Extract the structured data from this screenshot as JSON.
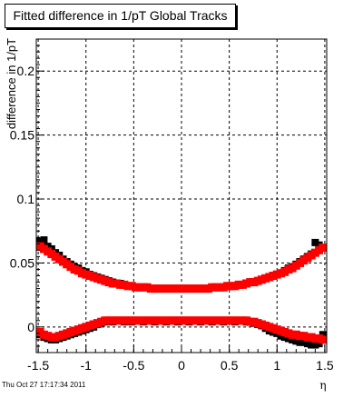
{
  "chart_data": {
    "type": "scatter",
    "title": "Fitted difference in 1/pT  Global Tracks",
    "xlabel": "η",
    "ylabel": "difference in 1/pT",
    "xlim": [
      -1.52,
      1.52
    ],
    "ylim": [
      -0.02,
      0.225
    ],
    "xticks": [
      -1.5,
      -1,
      -0.5,
      0,
      0.5,
      1,
      1.5
    ],
    "xtick_labels": [
      "-1.5",
      "-1",
      "-0.5",
      "0",
      "0.5",
      "1",
      "1.5"
    ],
    "yticks": [
      0,
      0.05,
      0.1,
      0.15,
      0.2
    ],
    "ytick_labels": [
      "0",
      "0.05",
      "0.1",
      "0.15",
      "0.2"
    ],
    "grid": true,
    "series": [
      {
        "color": "#000000",
        "x": [
          -1.48,
          -1.44,
          -1.4,
          -1.36,
          -1.32,
          -1.28,
          -1.24,
          -1.2,
          -1.16,
          -1.12,
          -1.08,
          -1.04,
          -1.0,
          -0.96,
          -0.92,
          -0.88,
          -0.84,
          -0.8,
          -0.76,
          -0.72,
          -0.68,
          -0.64,
          -0.6,
          -0.56,
          -0.52,
          -0.48,
          -0.44,
          -0.4,
          -0.36,
          -0.32,
          -0.28,
          -0.24,
          -0.2,
          -0.16,
          -0.12,
          -0.08,
          -0.04,
          0.0,
          0.04,
          0.08,
          0.12,
          0.16,
          0.2,
          0.24,
          0.28,
          0.32,
          0.36,
          0.4,
          0.44,
          0.48,
          0.52,
          0.56,
          0.6,
          0.64,
          0.68,
          0.72,
          0.76,
          0.8,
          0.84,
          0.88,
          0.92,
          0.96,
          1.0,
          1.04,
          1.08,
          1.12,
          1.16,
          1.2,
          1.24,
          1.28,
          1.32,
          1.36,
          1.4,
          1.44,
          1.48
        ],
        "y_upper": [
          0.067,
          0.068,
          0.063,
          0.061,
          0.058,
          0.056,
          0.053,
          0.051,
          0.049,
          0.047,
          0.046,
          0.044,
          0.043,
          0.041,
          0.04,
          0.039,
          0.038,
          0.037,
          0.036,
          0.035,
          0.034,
          0.034,
          0.033,
          0.032,
          0.032,
          0.031,
          0.031,
          0.031,
          0.031,
          0.03,
          0.03,
          0.03,
          0.03,
          0.03,
          0.03,
          0.03,
          0.03,
          0.03,
          0.03,
          0.03,
          0.03,
          0.03,
          0.03,
          0.03,
          0.03,
          0.031,
          0.031,
          0.031,
          0.031,
          0.032,
          0.032,
          0.032,
          0.033,
          0.033,
          0.034,
          0.035,
          0.035,
          0.036,
          0.037,
          0.038,
          0.039,
          0.04,
          0.041,
          0.042,
          0.044,
          0.046,
          0.047,
          0.049,
          0.051,
          0.053,
          0.055,
          0.057,
          0.066,
          0.064,
          0.062
        ],
        "y_lower": [
          -0.006,
          -0.008,
          -0.009,
          -0.01,
          -0.01,
          -0.009,
          -0.008,
          -0.007,
          -0.006,
          -0.005,
          -0.004,
          -0.003,
          -0.002,
          -0.001,
          0.0,
          0.002,
          0.003,
          0.004,
          0.005,
          0.004,
          0.005,
          0.005,
          0.004,
          0.005,
          0.004,
          0.005,
          0.005,
          0.004,
          0.005,
          0.005,
          0.004,
          0.005,
          0.005,
          0.004,
          0.005,
          0.005,
          0.004,
          0.005,
          0.005,
          0.004,
          0.005,
          0.005,
          0.004,
          0.005,
          0.005,
          0.004,
          0.005,
          0.005,
          0.004,
          0.005,
          0.005,
          0.004,
          0.005,
          0.005,
          0.004,
          0.004,
          0.003,
          0.002,
          0.001,
          -0.001,
          -0.003,
          -0.004,
          -0.005,
          -0.007,
          -0.008,
          -0.009,
          -0.01,
          -0.011,
          -0.012,
          -0.012,
          -0.013,
          -0.014,
          -0.014,
          -0.013,
          -0.006
        ]
      },
      {
        "color": "#ff0000",
        "x": [
          -1.48,
          -1.44,
          -1.4,
          -1.36,
          -1.32,
          -1.28,
          -1.24,
          -1.2,
          -1.16,
          -1.12,
          -1.08,
          -1.04,
          -1.0,
          -0.96,
          -0.92,
          -0.88,
          -0.84,
          -0.8,
          -0.76,
          -0.72,
          -0.68,
          -0.64,
          -0.6,
          -0.56,
          -0.52,
          -0.48,
          -0.44,
          -0.4,
          -0.36,
          -0.32,
          -0.28,
          -0.24,
          -0.2,
          -0.16,
          -0.12,
          -0.08,
          -0.04,
          0.0,
          0.04,
          0.08,
          0.12,
          0.16,
          0.2,
          0.24,
          0.28,
          0.32,
          0.36,
          0.4,
          0.44,
          0.48,
          0.52,
          0.56,
          0.6,
          0.64,
          0.68,
          0.72,
          0.76,
          0.8,
          0.84,
          0.88,
          0.92,
          0.96,
          1.0,
          1.04,
          1.08,
          1.12,
          1.16,
          1.2,
          1.24,
          1.28,
          1.32,
          1.36,
          1.4,
          1.44,
          1.48
        ],
        "y_upper": [
          0.063,
          0.061,
          0.059,
          0.057,
          0.055,
          0.053,
          0.051,
          0.049,
          0.047,
          0.045,
          0.044,
          0.042,
          0.041,
          0.04,
          0.039,
          0.038,
          0.037,
          0.036,
          0.035,
          0.034,
          0.034,
          0.033,
          0.033,
          0.032,
          0.032,
          0.031,
          0.031,
          0.031,
          0.031,
          0.03,
          0.03,
          0.03,
          0.03,
          0.03,
          0.03,
          0.03,
          0.03,
          0.03,
          0.03,
          0.03,
          0.03,
          0.03,
          0.03,
          0.03,
          0.03,
          0.031,
          0.031,
          0.031,
          0.031,
          0.032,
          0.032,
          0.032,
          0.033,
          0.033,
          0.034,
          0.035,
          0.035,
          0.036,
          0.037,
          0.038,
          0.039,
          0.04,
          0.041,
          0.042,
          0.043,
          0.045,
          0.046,
          0.048,
          0.05,
          0.052,
          0.054,
          0.056,
          0.058,
          0.06,
          0.062
        ],
        "y_lower": [
          -0.004,
          -0.006,
          -0.007,
          -0.008,
          -0.008,
          -0.007,
          -0.006,
          -0.005,
          -0.004,
          -0.003,
          -0.002,
          -0.001,
          0.0,
          0.001,
          0.002,
          0.003,
          0.004,
          0.005,
          0.005,
          0.005,
          0.005,
          0.005,
          0.005,
          0.005,
          0.005,
          0.005,
          0.005,
          0.005,
          0.005,
          0.005,
          0.005,
          0.005,
          0.005,
          0.005,
          0.005,
          0.005,
          0.005,
          0.005,
          0.005,
          0.005,
          0.005,
          0.005,
          0.005,
          0.005,
          0.005,
          0.005,
          0.005,
          0.005,
          0.005,
          0.005,
          0.005,
          0.005,
          0.005,
          0.005,
          0.005,
          0.004,
          0.004,
          0.003,
          0.002,
          0.001,
          0.0,
          -0.001,
          -0.002,
          -0.003,
          -0.004,
          -0.005,
          -0.006,
          -0.006,
          -0.007,
          -0.007,
          -0.008,
          -0.008,
          -0.009,
          -0.009,
          -0.01
        ]
      }
    ]
  },
  "footer": {
    "timestamp": "Thu Oct 27 17:17:34 2011"
  }
}
